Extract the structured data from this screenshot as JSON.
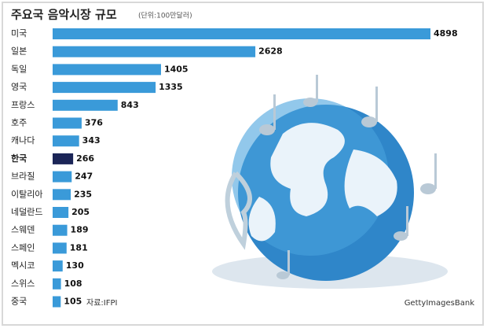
{
  "chart_data": {
    "type": "bar",
    "orientation": "horizontal",
    "title": "주요국 음악시장 규모",
    "subtitle": "(단위:100만달러)",
    "categories": [
      "미국",
      "일본",
      "독일",
      "영국",
      "프랑스",
      "호주",
      "캐나다",
      "한국",
      "브라질",
      "이탈리아",
      "네덜란드",
      "스웨덴",
      "스페인",
      "멕시코",
      "스위스",
      "중국"
    ],
    "values": [
      4898,
      2628,
      1405,
      1335,
      843,
      376,
      343,
      266,
      247,
      235,
      205,
      189,
      181,
      130,
      108,
      105
    ],
    "colors": [
      "#3a9ad9",
      "#3a9ad9",
      "#3a9ad9",
      "#3a9ad9",
      "#3a9ad9",
      "#3a9ad9",
      "#3a9ad9",
      "#1b2557",
      "#3a9ad9",
      "#3a9ad9",
      "#3a9ad9",
      "#3a9ad9",
      "#3a9ad9",
      "#3a9ad9",
      "#3a9ad9",
      "#3a9ad9"
    ],
    "source": "자료:IFPI",
    "credit": "GettyImagesBank"
  }
}
